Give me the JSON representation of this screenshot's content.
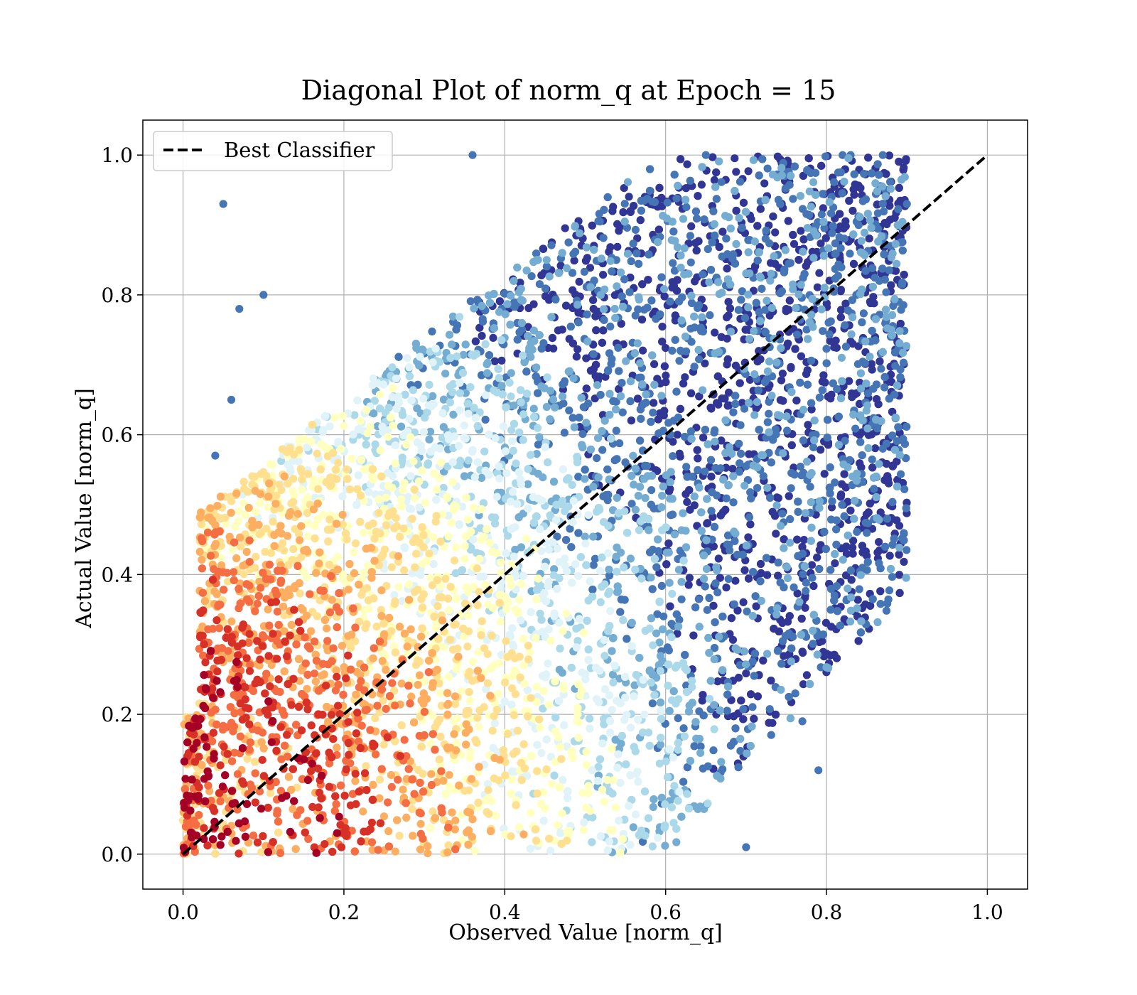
{
  "chart_data": {
    "type": "scatter",
    "title": "Diagonal Plot of norm_q at Epoch = 15",
    "xlabel": "Observed Value [norm_q]",
    "ylabel": "Actual Value [norm_q]",
    "xlim": [
      -0.05,
      1.05
    ],
    "ylim": [
      -0.05,
      1.05
    ],
    "x_ticks": [
      0.0,
      0.2,
      0.4,
      0.6,
      0.8,
      1.0
    ],
    "y_ticks": [
      0.0,
      0.2,
      0.4,
      0.6,
      0.8,
      1.0
    ],
    "x_tick_labels": [
      "0.0",
      "0.2",
      "0.4",
      "0.6",
      "0.8",
      "1.0"
    ],
    "y_tick_labels": [
      "0.0",
      "0.2",
      "0.4",
      "0.6",
      "0.8",
      "1.0"
    ],
    "grid": true,
    "legend_position": "upper left",
    "colormap": "RdYlBu (point density)",
    "colormap_stops": [
      "#a50026",
      "#d73027",
      "#f46d43",
      "#fdae61",
      "#fee090",
      "#ffffbf",
      "#e0f3f8",
      "#abd9e9",
      "#74add1",
      "#4575b4",
      "#313695"
    ],
    "series": [
      {
        "name": "Best Classifier",
        "kind": "line",
        "style": "dashed",
        "color": "#000000",
        "x": [
          0.0,
          1.0
        ],
        "y": [
          0.0,
          1.0
        ]
      },
      {
        "kind": "scatter",
        "description_points": [
          {
            "x": 0.05,
            "y": 0.93
          },
          {
            "x": 0.07,
            "y": 0.78
          },
          {
            "x": 0.06,
            "y": 0.65
          },
          {
            "x": 0.04,
            "y": 0.57
          },
          {
            "x": 0.1,
            "y": 0.8
          },
          {
            "x": 0.36,
            "y": 1.0
          },
          {
            "x": 0.65,
            "y": 1.0
          },
          {
            "x": 0.82,
            "y": 1.0
          },
          {
            "x": 0.83,
            "y": 1.0
          },
          {
            "x": 0.87,
            "y": 1.0
          },
          {
            "x": 0.9,
            "y": 0.93
          },
          {
            "x": 0.88,
            "y": 0.87
          },
          {
            "x": 0.89,
            "y": 0.79
          },
          {
            "x": 0.88,
            "y": 0.74
          },
          {
            "x": 0.87,
            "y": 0.58
          },
          {
            "x": 0.81,
            "y": 0.37
          },
          {
            "x": 0.79,
            "y": 0.12
          },
          {
            "x": 0.77,
            "y": 0.19
          },
          {
            "x": 0.7,
            "y": 0.01
          },
          {
            "x": 0.61,
            "y": 0.62
          },
          {
            "x": 0.26,
            "y": 0.69
          }
        ]
      }
    ]
  }
}
